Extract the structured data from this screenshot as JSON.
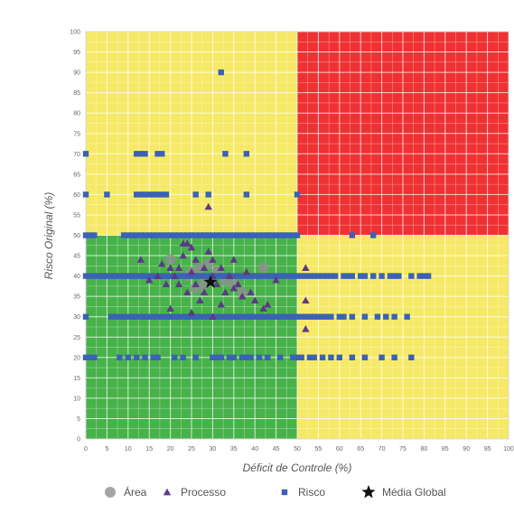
{
  "chart_data": {
    "type": "scatter",
    "xlabel": "Déficit de Controle (%)",
    "ylabel": "Risco Original (%)",
    "xlim": [
      0,
      100
    ],
    "ylim": [
      0,
      100
    ],
    "xticks": [
      "0",
      "5",
      "10",
      "15",
      "20",
      "25",
      "30",
      "35",
      "40",
      "45",
      "50",
      "55",
      "60",
      "65",
      "70",
      "75",
      "80",
      "85",
      "90",
      "95",
      "100"
    ],
    "yticks": [
      "0",
      "5",
      "10",
      "15",
      "20",
      "25",
      "30",
      "35",
      "40",
      "45",
      "50",
      "55",
      "60",
      "65",
      "70",
      "75",
      "80",
      "85",
      "90",
      "95",
      "100"
    ],
    "grid": true,
    "legend_position": "bottom",
    "background_zones": [
      {
        "name": "low",
        "color": "#48b24a",
        "x": [
          0,
          50
        ],
        "y": [
          0,
          50
        ]
      },
      {
        "name": "medium",
        "color": "#f6e967",
        "x": [
          50,
          100
        ],
        "y": [
          0,
          50
        ]
      },
      {
        "name": "medium",
        "color": "#f6e967",
        "x": [
          0,
          50
        ],
        "y": [
          50,
          100
        ]
      },
      {
        "name": "high",
        "color": "#ef3133",
        "x": [
          50,
          100
        ],
        "y": [
          50,
          100
        ]
      }
    ],
    "series": [
      {
        "name": "Área",
        "marker": "circle",
        "color": "#8f8f8f",
        "points": [
          [
            20,
            44
          ],
          [
            24,
            40
          ],
          [
            27,
            42
          ],
          [
            28,
            38
          ],
          [
            26,
            37
          ],
          [
            31,
            41
          ],
          [
            33,
            39
          ],
          [
            35,
            38
          ],
          [
            29,
            43
          ],
          [
            37,
            36
          ],
          [
            42,
            42
          ],
          [
            25,
            41
          ]
        ]
      },
      {
        "name": "Processo",
        "marker": "triangle",
        "color": "#5b3a86",
        "points": [
          [
            29,
            57
          ],
          [
            23,
            48
          ],
          [
            24,
            48
          ],
          [
            25,
            47
          ],
          [
            29,
            46
          ],
          [
            13,
            44
          ],
          [
            18,
            43
          ],
          [
            23,
            45
          ],
          [
            26,
            44
          ],
          [
            30,
            44
          ],
          [
            35,
            44
          ],
          [
            20,
            42
          ],
          [
            22,
            42
          ],
          [
            28,
            42
          ],
          [
            32,
            42
          ],
          [
            52,
            42
          ],
          [
            17,
            40
          ],
          [
            21,
            40
          ],
          [
            25,
            41
          ],
          [
            30,
            40
          ],
          [
            34,
            40
          ],
          [
            38,
            41
          ],
          [
            15,
            39
          ],
          [
            19,
            38
          ],
          [
            22,
            38
          ],
          [
            26,
            38
          ],
          [
            31,
            38
          ],
          [
            36,
            38
          ],
          [
            45,
            39
          ],
          [
            24,
            36
          ],
          [
            28,
            36
          ],
          [
            33,
            36
          ],
          [
            35,
            37
          ],
          [
            37,
            35
          ],
          [
            39,
            36
          ],
          [
            40,
            34
          ],
          [
            27,
            34
          ],
          [
            32,
            33
          ],
          [
            43,
            33
          ],
          [
            52,
            34
          ],
          [
            20,
            32
          ],
          [
            42,
            32
          ],
          [
            25,
            31
          ],
          [
            30,
            30
          ],
          [
            52,
            27
          ]
        ]
      },
      {
        "name": "Risco",
        "marker": "square",
        "color": "#3a62b5",
        "points": [
          [
            32,
            90
          ],
          [
            0,
            70
          ],
          [
            12,
            70
          ],
          [
            13,
            70
          ],
          [
            14,
            70
          ],
          [
            17,
            70
          ],
          [
            18,
            70
          ],
          [
            33,
            70
          ],
          [
            38,
            70
          ],
          [
            0,
            60
          ],
          [
            5,
            60
          ],
          [
            12,
            60
          ],
          [
            13,
            60
          ],
          [
            14,
            60
          ],
          [
            15,
            60
          ],
          [
            16,
            60
          ],
          [
            17,
            60
          ],
          [
            18,
            60
          ],
          [
            19,
            60
          ],
          [
            26,
            60
          ],
          [
            29,
            60
          ],
          [
            38,
            60
          ],
          [
            50,
            60
          ],
          [
            63,
            50
          ],
          [
            68,
            50
          ],
          [
            0,
            50
          ],
          [
            1,
            50
          ],
          [
            2,
            50
          ],
          [
            9,
            50
          ],
          [
            10,
            50
          ],
          [
            11,
            50
          ],
          [
            12,
            50
          ],
          [
            13,
            50
          ],
          [
            14,
            50
          ],
          [
            15,
            50
          ],
          [
            16,
            50
          ],
          [
            17,
            50
          ],
          [
            18,
            50
          ],
          [
            19,
            50
          ],
          [
            20,
            50
          ],
          [
            21,
            50
          ],
          [
            22,
            50
          ],
          [
            23,
            50
          ],
          [
            24,
            50
          ],
          [
            25,
            50
          ],
          [
            26,
            50
          ],
          [
            27,
            50
          ],
          [
            28,
            50
          ],
          [
            29,
            50
          ],
          [
            30,
            50
          ],
          [
            31,
            50
          ],
          [
            32,
            50
          ],
          [
            33,
            50
          ],
          [
            34,
            50
          ],
          [
            35,
            50
          ],
          [
            36,
            50
          ],
          [
            37,
            50
          ],
          [
            38,
            50
          ],
          [
            39,
            50
          ],
          [
            40,
            50
          ],
          [
            41,
            50
          ],
          [
            42,
            50
          ],
          [
            43,
            50
          ],
          [
            44,
            50
          ],
          [
            45,
            50
          ],
          [
            46,
            50
          ],
          [
            47,
            50
          ],
          [
            48,
            50
          ],
          [
            49,
            50
          ],
          [
            50,
            50
          ],
          [
            0,
            40
          ],
          [
            1,
            40
          ],
          [
            2,
            40
          ],
          [
            3,
            40
          ],
          [
            4,
            40
          ],
          [
            5,
            40
          ],
          [
            6,
            40
          ],
          [
            7,
            40
          ],
          [
            8,
            40
          ],
          [
            9,
            40
          ],
          [
            10,
            40
          ],
          [
            11,
            40
          ],
          [
            12,
            40
          ],
          [
            13,
            40
          ],
          [
            14,
            40
          ],
          [
            15,
            40
          ],
          [
            16,
            40
          ],
          [
            17,
            40
          ],
          [
            18,
            40
          ],
          [
            19,
            40
          ],
          [
            20,
            40
          ],
          [
            21,
            40
          ],
          [
            22,
            40
          ],
          [
            23,
            40
          ],
          [
            24,
            40
          ],
          [
            25,
            40
          ],
          [
            26,
            40
          ],
          [
            27,
            40
          ],
          [
            28,
            40
          ],
          [
            29,
            40
          ],
          [
            30,
            40
          ],
          [
            31,
            40
          ],
          [
            32,
            40
          ],
          [
            33,
            40
          ],
          [
            34,
            40
          ],
          [
            35,
            40
          ],
          [
            36,
            40
          ],
          [
            37,
            40
          ],
          [
            38,
            40
          ],
          [
            39,
            40
          ],
          [
            40,
            40
          ],
          [
            41,
            40
          ],
          [
            42,
            40
          ],
          [
            43,
            40
          ],
          [
            44,
            40
          ],
          [
            45,
            40
          ],
          [
            46,
            40
          ],
          [
            47,
            40
          ],
          [
            48,
            40
          ],
          [
            49,
            40
          ],
          [
            50,
            40
          ],
          [
            51,
            40
          ],
          [
            52,
            40
          ],
          [
            53,
            40
          ],
          [
            54,
            40
          ],
          [
            55,
            40
          ],
          [
            56,
            40
          ],
          [
            57,
            40
          ],
          [
            58,
            40
          ],
          [
            59,
            40
          ],
          [
            61,
            40
          ],
          [
            62,
            40
          ],
          [
            63,
            40
          ],
          [
            65,
            40
          ],
          [
            66,
            40
          ],
          [
            68,
            40
          ],
          [
            70,
            40
          ],
          [
            72,
            40
          ],
          [
            73,
            40
          ],
          [
            74,
            40
          ],
          [
            77,
            40
          ],
          [
            79,
            40
          ],
          [
            80,
            40
          ],
          [
            81,
            40
          ],
          [
            0,
            30
          ],
          [
            6,
            30
          ],
          [
            7,
            30
          ],
          [
            8,
            30
          ],
          [
            9,
            30
          ],
          [
            10,
            30
          ],
          [
            11,
            30
          ],
          [
            12,
            30
          ],
          [
            13,
            30
          ],
          [
            14,
            30
          ],
          [
            15,
            30
          ],
          [
            16,
            30
          ],
          [
            17,
            30
          ],
          [
            18,
            30
          ],
          [
            19,
            30
          ],
          [
            20,
            30
          ],
          [
            21,
            30
          ],
          [
            22,
            30
          ],
          [
            23,
            30
          ],
          [
            24,
            30
          ],
          [
            25,
            30
          ],
          [
            26,
            30
          ],
          [
            27,
            30
          ],
          [
            28,
            30
          ],
          [
            29,
            30
          ],
          [
            30,
            30
          ],
          [
            31,
            30
          ],
          [
            32,
            30
          ],
          [
            33,
            30
          ],
          [
            34,
            30
          ],
          [
            35,
            30
          ],
          [
            36,
            30
          ],
          [
            37,
            30
          ],
          [
            38,
            30
          ],
          [
            39,
            30
          ],
          [
            40,
            30
          ],
          [
            41,
            30
          ],
          [
            42,
            30
          ],
          [
            43,
            30
          ],
          [
            44,
            30
          ],
          [
            45,
            30
          ],
          [
            46,
            30
          ],
          [
            47,
            30
          ],
          [
            48,
            30
          ],
          [
            49,
            30
          ],
          [
            50,
            30
          ],
          [
            51,
            30
          ],
          [
            52,
            30
          ],
          [
            53,
            30
          ],
          [
            54,
            30
          ],
          [
            55,
            30
          ],
          [
            56,
            30
          ],
          [
            57,
            30
          ],
          [
            58,
            30
          ],
          [
            60,
            30
          ],
          [
            61,
            30
          ],
          [
            63,
            30
          ],
          [
            66,
            30
          ],
          [
            69,
            30
          ],
          [
            71,
            30
          ],
          [
            73,
            30
          ],
          [
            76,
            30
          ],
          [
            0,
            20
          ],
          [
            1,
            20
          ],
          [
            2,
            20
          ],
          [
            8,
            20
          ],
          [
            10,
            20
          ],
          [
            12,
            20
          ],
          [
            14,
            20
          ],
          [
            16,
            20
          ],
          [
            17,
            20
          ],
          [
            21,
            20
          ],
          [
            23,
            20
          ],
          [
            26,
            20
          ],
          [
            30,
            20
          ],
          [
            31,
            20
          ],
          [
            32,
            20
          ],
          [
            34,
            20
          ],
          [
            35,
            20
          ],
          [
            37,
            20
          ],
          [
            38,
            20
          ],
          [
            39,
            20
          ],
          [
            41,
            20
          ],
          [
            43,
            20
          ],
          [
            46,
            20
          ],
          [
            49,
            20
          ],
          [
            50,
            20
          ],
          [
            51,
            20
          ],
          [
            53,
            20
          ],
          [
            54,
            20
          ],
          [
            56,
            20
          ],
          [
            58,
            20
          ],
          [
            60,
            20
          ],
          [
            63,
            20
          ],
          [
            66,
            20
          ],
          [
            70,
            20
          ],
          [
            73,
            20
          ],
          [
            77,
            20
          ]
        ]
      },
      {
        "name": "Média Global",
        "marker": "star",
        "color": "#111111",
        "points": [
          [
            29.5,
            38.5
          ]
        ]
      }
    ]
  }
}
